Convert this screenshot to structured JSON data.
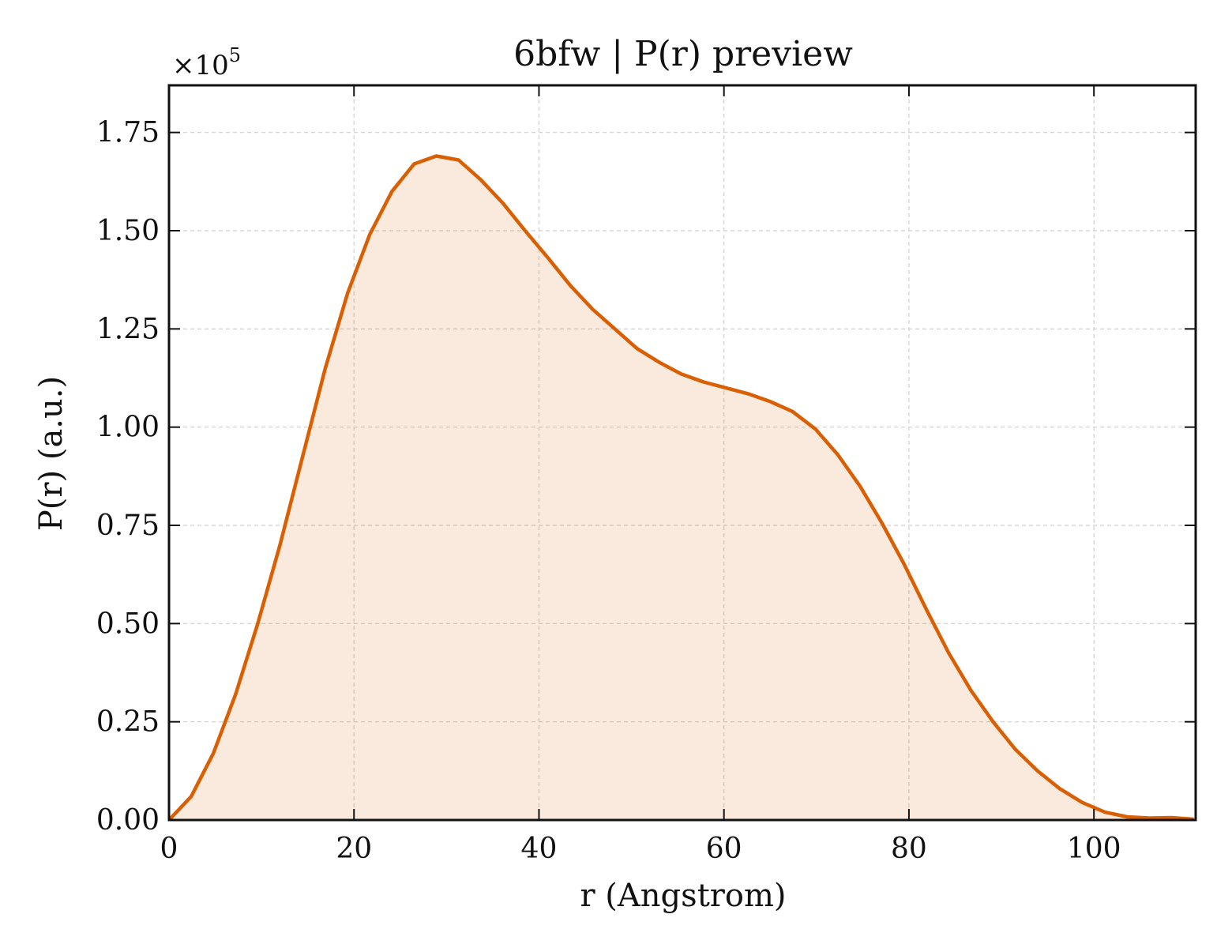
{
  "chart_data": {
    "type": "area",
    "title": "6bfw | P(r) preview",
    "xlabel": "r (Angstrom)",
    "ylabel": "P(r) (a.u.)",
    "y_multiplier_label": "×10",
    "y_multiplier_exponent": "5",
    "xlim": [
      0,
      111
    ],
    "ylim": [
      0,
      1.87
    ],
    "x_ticks": [
      0,
      20,
      40,
      60,
      80,
      100
    ],
    "x_tick_labels": [
      "0",
      "20",
      "40",
      "60",
      "80",
      "100"
    ],
    "y_ticks": [
      0,
      0.25,
      0.5,
      0.75,
      1.0,
      1.25,
      1.5,
      1.75
    ],
    "y_tick_labels": [
      "0.00",
      "0.25",
      "0.50",
      "0.75",
      "1.00",
      "1.25",
      "1.50",
      "1.75"
    ],
    "grid": true,
    "colors": {
      "line": "#d95f02",
      "fill": "#d95f02"
    },
    "series": [
      {
        "x": [
          0,
          2.4,
          4.8,
          7.2,
          9.6,
          12.0,
          14.5,
          16.9,
          19.3,
          21.7,
          24.1,
          26.5,
          28.9,
          31.3,
          33.7,
          36.1,
          38.5,
          41.0,
          43.4,
          45.8,
          48.2,
          50.6,
          53.0,
          55.4,
          57.8,
          60.2,
          62.6,
          65.0,
          67.4,
          69.9,
          72.3,
          74.7,
          77.1,
          79.5,
          81.9,
          84.3,
          86.7,
          89.1,
          91.5,
          93.9,
          96.3,
          98.7,
          101.2,
          103.6,
          106.0,
          108.4,
          110.8
        ],
        "y": [
          0.0,
          0.06,
          0.17,
          0.32,
          0.5,
          0.7,
          0.93,
          1.15,
          1.34,
          1.49,
          1.6,
          1.67,
          1.69,
          1.68,
          1.63,
          1.57,
          1.5,
          1.43,
          1.36,
          1.3,
          1.25,
          1.2,
          1.165,
          1.135,
          1.115,
          1.1,
          1.085,
          1.065,
          1.04,
          0.995,
          0.93,
          0.85,
          0.755,
          0.65,
          0.535,
          0.425,
          0.33,
          0.25,
          0.18,
          0.125,
          0.08,
          0.045,
          0.02,
          0.008,
          0.005,
          0.006,
          0.002
        ]
      }
    ]
  }
}
